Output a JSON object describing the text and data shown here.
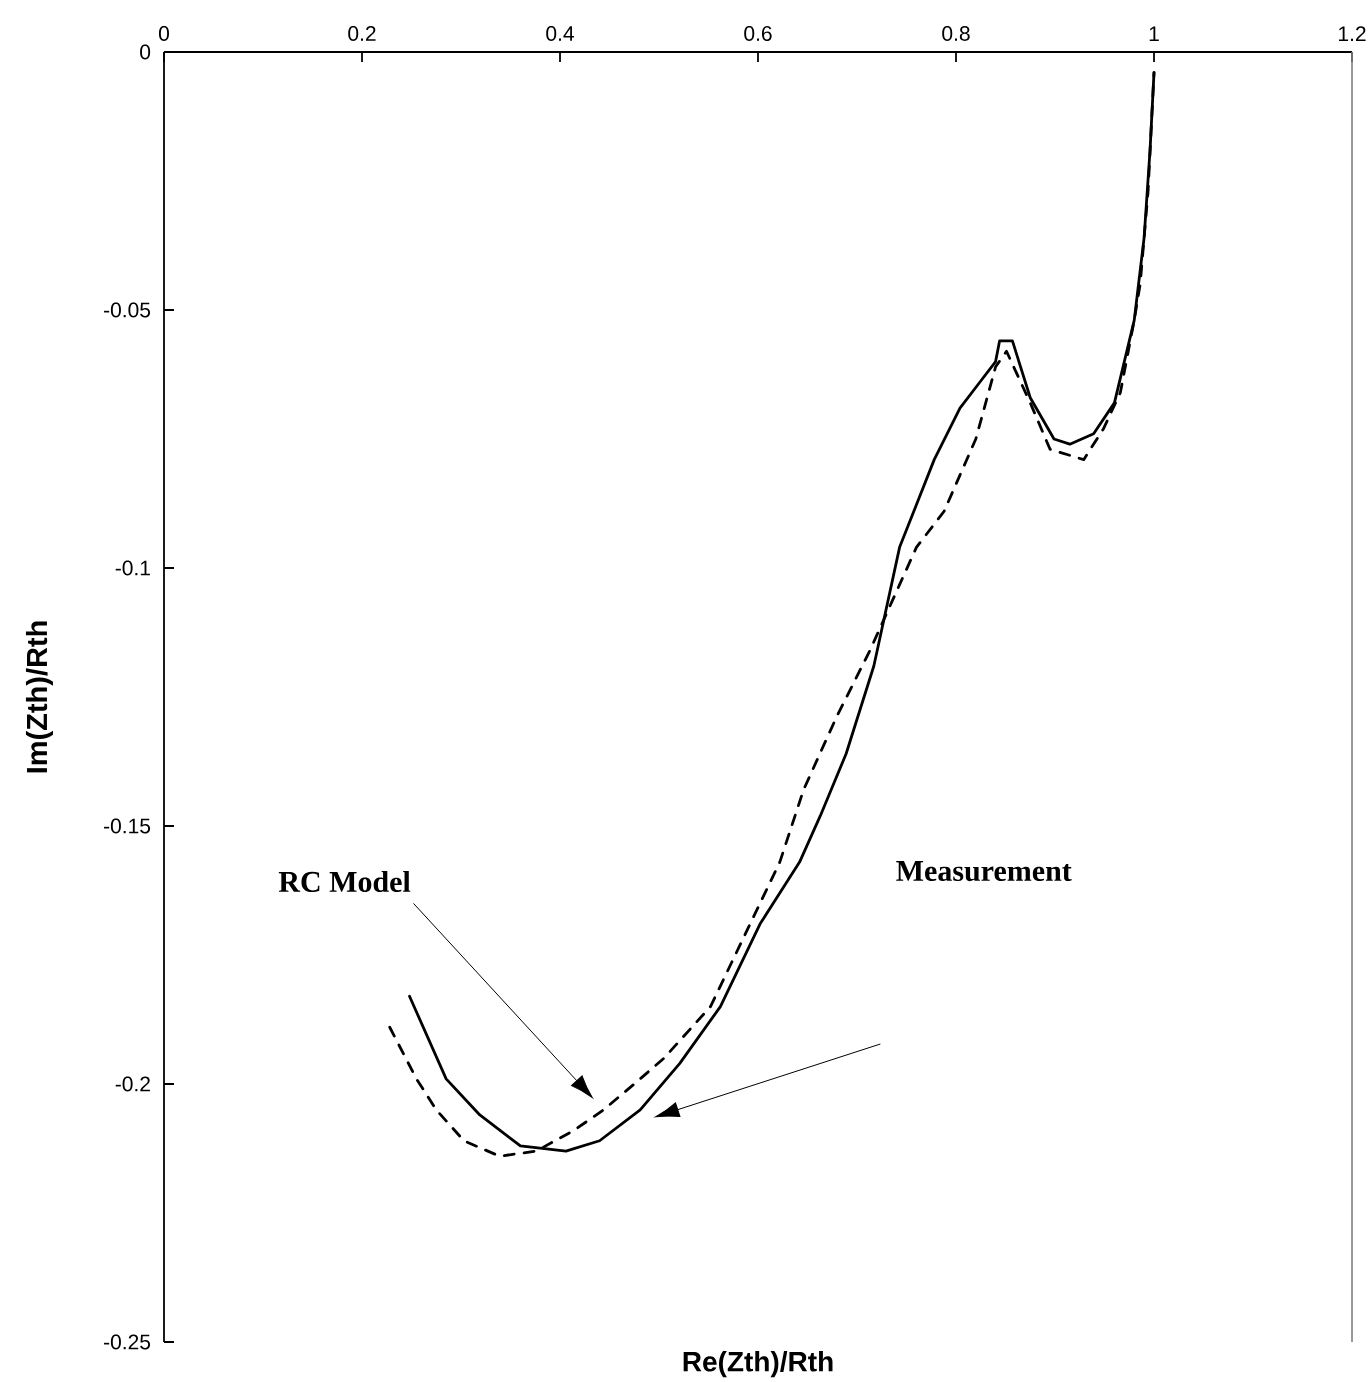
{
  "chart_data": {
    "type": "line",
    "xlabel": "Re(Zth)/Rth",
    "ylabel": "Im(Zth)/Rth",
    "xlim": [
      0,
      1.2
    ],
    "ylim": [
      -0.25,
      0
    ],
    "xticks": [
      0,
      0.2,
      0.4,
      0.6,
      0.8,
      1,
      1.2
    ],
    "yticks": [
      0,
      -0.05,
      -0.1,
      -0.15,
      -0.2,
      -0.25
    ],
    "grid": false,
    "marker": "none",
    "series": [
      {
        "color": "#000000",
        "line_style": "solid",
        "x": [
          0.248,
          0.285,
          0.319,
          0.36,
          0.406,
          0.44,
          0.481,
          0.521,
          0.562,
          0.602,
          0.642,
          0.663,
          0.689,
          0.717,
          0.743,
          0.778,
          0.804,
          0.824,
          0.84,
          0.844,
          0.857,
          0.875,
          0.899,
          0.915,
          0.939,
          0.96,
          0.98,
          0.99,
          0.996,
          1.0
        ],
        "values": [
          -0.183,
          -0.199,
          -0.206,
          -0.212,
          -0.213,
          -0.211,
          -0.205,
          -0.196,
          -0.185,
          -0.169,
          -0.157,
          -0.148,
          -0.136,
          -0.119,
          -0.096,
          -0.079,
          -0.069,
          -0.064,
          -0.06,
          -0.056,
          -0.056,
          -0.067,
          -0.075,
          -0.076,
          -0.074,
          -0.068,
          -0.052,
          -0.036,
          -0.019,
          -0.004
        ]
      },
      {
        "color": "#000000",
        "line_style": "dashed",
        "x": [
          0.228,
          0.255,
          0.275,
          0.303,
          0.339,
          0.376,
          0.414,
          0.444,
          0.475,
          0.505,
          0.552,
          0.602,
          0.622,
          0.646,
          0.679,
          0.713,
          0.76,
          0.788,
          0.804,
          0.82,
          0.83,
          0.84,
          0.851,
          0.875,
          0.895,
          0.929,
          0.949,
          0.966,
          0.98,
          0.986,
          0.994,
          1.0
        ],
        "values": [
          -0.189,
          -0.199,
          -0.205,
          -0.211,
          -0.214,
          -0.213,
          -0.209,
          -0.205,
          -0.2,
          -0.195,
          -0.185,
          -0.165,
          -0.157,
          -0.143,
          -0.129,
          -0.116,
          -0.096,
          -0.089,
          -0.082,
          -0.075,
          -0.068,
          -0.061,
          -0.058,
          -0.068,
          -0.077,
          -0.079,
          -0.073,
          -0.066,
          -0.052,
          -0.045,
          -0.027,
          -0.004
        ]
      }
    ],
    "annotations": [
      "RC Model",
      "Measurement"
    ]
  }
}
